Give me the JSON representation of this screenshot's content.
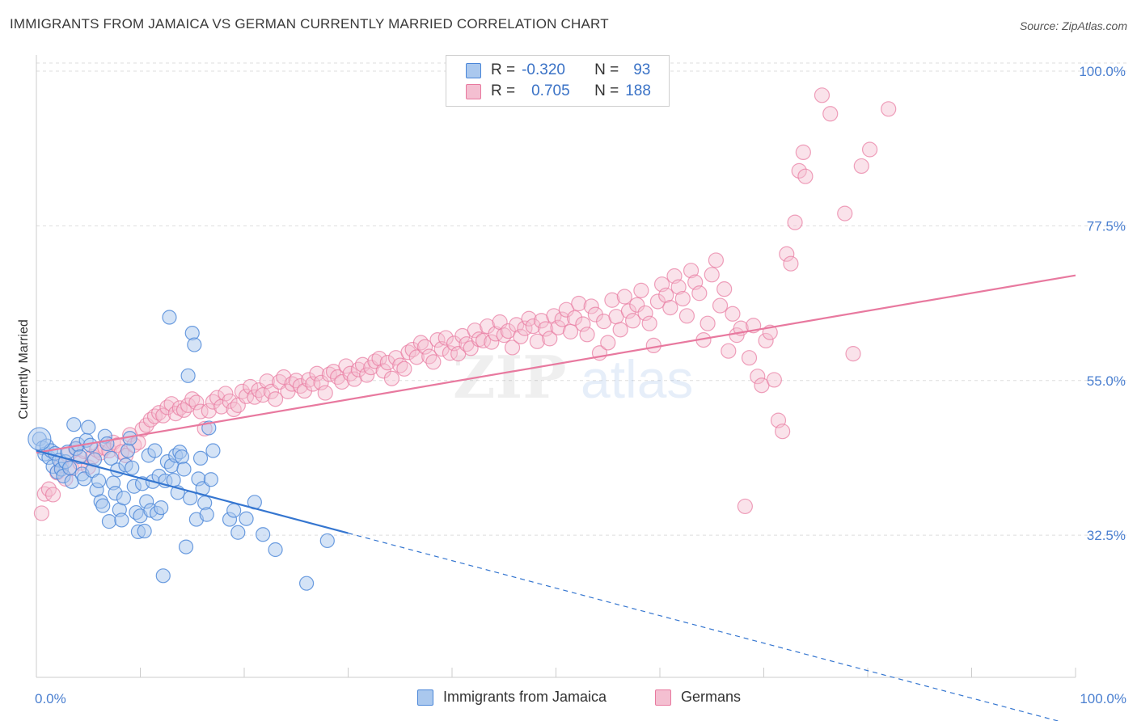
{
  "title": "IMMIGRANTS FROM JAMAICA VS GERMAN CURRENTLY MARRIED CORRELATION CHART",
  "source": "Source: ZipAtlas.com",
  "colors": {
    "blue": "#4a86d8",
    "blue_fill": "#aac8ee",
    "pink": "#e8799f",
    "pink_fill": "#f4bfd1",
    "tick_label": "#4a7fd0",
    "grid": "#dddddd"
  },
  "legend": {
    "rows": [
      {
        "r_label": "R =",
        "r_value": "-0.320",
        "n_label": "N =",
        "n_value": "93"
      },
      {
        "r_label": "R =",
        "r_value": "0.705",
        "n_label": "N =",
        "n_value": "188"
      }
    ]
  },
  "bottom_legend": {
    "series1": "Immigrants from Jamaica",
    "series2": "Germans"
  },
  "watermark": {
    "part1": "ZIP",
    "part2": "atlas"
  },
  "chart_data": {
    "type": "scatter",
    "title": "IMMIGRANTS FROM JAMAICA VS GERMAN CURRENTLY MARRIED CORRELATION CHART",
    "xlabel": "",
    "ylabel": "Currently Married",
    "xlim": [
      0,
      100
    ],
    "ylim": [
      10,
      102
    ],
    "x_tick_labels": [
      "0.0%",
      "100.0%"
    ],
    "y_ticks": [
      32.5,
      55.0,
      77.5,
      100.0
    ],
    "y_tick_labels": [
      "32.5%",
      "55.0%",
      "77.5%",
      "100.0%"
    ],
    "grid": true,
    "legend_position": "top-center",
    "series": [
      {
        "name": "Immigrants from Jamaica",
        "color": "#4a86d8",
        "r": -0.32,
        "n": 93,
        "trend": {
          "x0": 0,
          "y0": 44.8,
          "x1": 30,
          "y1": 32.8,
          "dashed_to_x": 100
        },
        "points": [
          [
            0.3,
            46.5
          ],
          [
            0.6,
            45.2
          ],
          [
            0.8,
            44.3
          ],
          [
            1.0,
            45.5
          ],
          [
            1.2,
            43.8
          ],
          [
            1.4,
            44.8
          ],
          [
            1.6,
            42.5
          ],
          [
            1.8,
            44.4
          ],
          [
            2.0,
            41.7
          ],
          [
            2.2,
            43.4
          ],
          [
            2.4,
            42.1
          ],
          [
            2.6,
            41.1
          ],
          [
            2.8,
            43.2
          ],
          [
            3.0,
            44.6
          ],
          [
            3.2,
            42.3
          ],
          [
            3.4,
            40.3
          ],
          [
            3.6,
            48.6
          ],
          [
            3.8,
            45.1
          ],
          [
            4.0,
            45.7
          ],
          [
            4.2,
            43.9
          ],
          [
            4.4,
            41.4
          ],
          [
            4.6,
            40.7
          ],
          [
            4.8,
            46.3
          ],
          [
            5.0,
            48.2
          ],
          [
            5.2,
            45.6
          ],
          [
            5.4,
            41.9
          ],
          [
            5.6,
            43.5
          ],
          [
            5.8,
            39.1
          ],
          [
            6.0,
            40.4
          ],
          [
            6.2,
            37.4
          ],
          [
            6.4,
            36.8
          ],
          [
            6.6,
            46.9
          ],
          [
            6.8,
            45.8
          ],
          [
            7.0,
            34.5
          ],
          [
            7.2,
            43.7
          ],
          [
            7.4,
            40.1
          ],
          [
            7.6,
            38.6
          ],
          [
            7.8,
            42.0
          ],
          [
            8.0,
            36.2
          ],
          [
            8.2,
            34.7
          ],
          [
            8.4,
            37.9
          ],
          [
            8.6,
            42.7
          ],
          [
            8.8,
            44.8
          ],
          [
            9.0,
            46.6
          ],
          [
            9.2,
            42.3
          ],
          [
            9.4,
            39.6
          ],
          [
            9.6,
            35.8
          ],
          [
            9.8,
            33.0
          ],
          [
            10.0,
            35.3
          ],
          [
            10.2,
            40.0
          ],
          [
            10.4,
            33.1
          ],
          [
            10.6,
            37.4
          ],
          [
            10.8,
            44.1
          ],
          [
            11.0,
            36.1
          ],
          [
            11.2,
            40.3
          ],
          [
            11.4,
            44.8
          ],
          [
            11.6,
            35.7
          ],
          [
            11.8,
            41.1
          ],
          [
            12.0,
            36.5
          ],
          [
            12.2,
            26.6
          ],
          [
            12.4,
            40.4
          ],
          [
            12.6,
            43.2
          ],
          [
            12.8,
            64.2
          ],
          [
            13.0,
            42.6
          ],
          [
            13.2,
            40.5
          ],
          [
            13.4,
            44.1
          ],
          [
            13.6,
            38.7
          ],
          [
            13.8,
            44.6
          ],
          [
            14.0,
            43.9
          ],
          [
            14.2,
            42.1
          ],
          [
            14.4,
            30.8
          ],
          [
            14.6,
            55.7
          ],
          [
            14.8,
            37.9
          ],
          [
            15.0,
            61.9
          ],
          [
            15.2,
            60.2
          ],
          [
            15.4,
            34.8
          ],
          [
            15.6,
            40.7
          ],
          [
            15.8,
            43.7
          ],
          [
            16.0,
            39.3
          ],
          [
            16.2,
            37.2
          ],
          [
            16.4,
            35.5
          ],
          [
            16.6,
            48.1
          ],
          [
            16.8,
            40.6
          ],
          [
            17.0,
            44.8
          ],
          [
            18.6,
            34.8
          ],
          [
            19.0,
            36.1
          ],
          [
            19.4,
            32.9
          ],
          [
            20.2,
            34.9
          ],
          [
            21.0,
            37.3
          ],
          [
            21.8,
            32.6
          ],
          [
            23.0,
            30.4
          ],
          [
            26.0,
            25.5
          ],
          [
            28.0,
            31.7
          ]
        ]
      },
      {
        "name": "Germans",
        "color": "#e8799f",
        "r": 0.705,
        "n": 188,
        "trend": {
          "x0": 0,
          "y0": 44.5,
          "x1": 100,
          "y1": 70.3
        },
        "points": [
          [
            0.5,
            35.7
          ],
          [
            0.8,
            38.5
          ],
          [
            1.2,
            39.2
          ],
          [
            1.6,
            38.4
          ],
          [
            2.0,
            41.6
          ],
          [
            2.4,
            42.7
          ],
          [
            2.8,
            40.7
          ],
          [
            3.0,
            44.2
          ],
          [
            3.4,
            42.2
          ],
          [
            3.8,
            45.1
          ],
          [
            4.2,
            43.0
          ],
          [
            4.6,
            44.7
          ],
          [
            5.0,
            42.4
          ],
          [
            5.4,
            43.9
          ],
          [
            5.8,
            44.9
          ],
          [
            6.2,
            44.5
          ],
          [
            6.6,
            45.2
          ],
          [
            7.0,
            44.8
          ],
          [
            7.4,
            46.0
          ],
          [
            7.8,
            45.6
          ],
          [
            8.2,
            44.6
          ],
          [
            8.6,
            44.1
          ],
          [
            9.0,
            47.1
          ],
          [
            9.4,
            45.6
          ],
          [
            9.8,
            46.0
          ],
          [
            10.2,
            47.9
          ],
          [
            10.6,
            48.5
          ],
          [
            11.0,
            49.3
          ],
          [
            11.4,
            49.8
          ],
          [
            11.8,
            50.3
          ],
          [
            12.2,
            49.9
          ],
          [
            12.6,
            51.1
          ],
          [
            13.0,
            51.6
          ],
          [
            13.4,
            50.2
          ],
          [
            13.8,
            51.0
          ],
          [
            14.2,
            50.7
          ],
          [
            14.6,
            51.4
          ],
          [
            15.0,
            52.3
          ],
          [
            15.4,
            51.8
          ],
          [
            15.8,
            50.5
          ],
          [
            16.2,
            48.0
          ],
          [
            16.6,
            50.6
          ],
          [
            17.0,
            51.9
          ],
          [
            17.4,
            52.5
          ],
          [
            17.8,
            51.2
          ],
          [
            18.2,
            53.1
          ],
          [
            18.6,
            52.0
          ],
          [
            19.0,
            50.8
          ],
          [
            19.4,
            51.4
          ],
          [
            19.8,
            53.4
          ],
          [
            20.2,
            52.7
          ],
          [
            20.6,
            54.1
          ],
          [
            21.0,
            52.6
          ],
          [
            21.4,
            53.6
          ],
          [
            21.8,
            52.9
          ],
          [
            22.2,
            54.9
          ],
          [
            22.6,
            53.4
          ],
          [
            23.0,
            52.3
          ],
          [
            23.4,
            54.8
          ],
          [
            23.8,
            55.5
          ],
          [
            24.2,
            53.4
          ],
          [
            24.6,
            54.5
          ],
          [
            25.0,
            55.0
          ],
          [
            25.4,
            54.2
          ],
          [
            25.8,
            53.5
          ],
          [
            26.2,
            55.1
          ],
          [
            26.6,
            54.5
          ],
          [
            27.0,
            56.0
          ],
          [
            27.4,
            54.7
          ],
          [
            27.8,
            53.2
          ],
          [
            28.2,
            55.9
          ],
          [
            28.6,
            56.3
          ],
          [
            29.0,
            55.5
          ],
          [
            29.4,
            54.8
          ],
          [
            29.8,
            57.1
          ],
          [
            30.2,
            56.0
          ],
          [
            30.6,
            55.2
          ],
          [
            31.0,
            56.6
          ],
          [
            31.4,
            57.3
          ],
          [
            31.8,
            55.8
          ],
          [
            32.2,
            56.9
          ],
          [
            32.6,
            57.8
          ],
          [
            33.0,
            58.2
          ],
          [
            33.4,
            56.4
          ],
          [
            33.8,
            57.6
          ],
          [
            34.2,
            55.3
          ],
          [
            34.6,
            58.3
          ],
          [
            35.0,
            57.2
          ],
          [
            35.4,
            56.7
          ],
          [
            35.8,
            59.1
          ],
          [
            36.2,
            59.5
          ],
          [
            36.6,
            58.4
          ],
          [
            37.0,
            60.5
          ],
          [
            37.4,
            59.9
          ],
          [
            37.8,
            58.5
          ],
          [
            38.2,
            57.7
          ],
          [
            38.6,
            60.9
          ],
          [
            39.0,
            59.6
          ],
          [
            39.4,
            61.2
          ],
          [
            39.8,
            59.0
          ],
          [
            40.2,
            60.4
          ],
          [
            40.6,
            58.9
          ],
          [
            41.0,
            61.5
          ],
          [
            41.4,
            60.3
          ],
          [
            41.8,
            59.7
          ],
          [
            42.2,
            62.3
          ],
          [
            42.6,
            61.0
          ],
          [
            43.0,
            60.8
          ],
          [
            43.4,
            62.9
          ],
          [
            43.8,
            60.6
          ],
          [
            44.2,
            61.8
          ],
          [
            44.6,
            63.5
          ],
          [
            45.0,
            61.6
          ],
          [
            45.4,
            62.2
          ],
          [
            45.8,
            59.8
          ],
          [
            46.2,
            63.1
          ],
          [
            46.6,
            61.4
          ],
          [
            47.0,
            62.6
          ],
          [
            47.4,
            64.0
          ],
          [
            47.8,
            62.9
          ],
          [
            48.2,
            60.7
          ],
          [
            48.6,
            63.7
          ],
          [
            49.0,
            62.5
          ],
          [
            49.4,
            61.1
          ],
          [
            49.8,
            64.4
          ],
          [
            50.2,
            62.7
          ],
          [
            50.6,
            63.9
          ],
          [
            51.0,
            65.3
          ],
          [
            51.4,
            62.1
          ],
          [
            51.8,
            64.1
          ],
          [
            52.2,
            66.2
          ],
          [
            52.6,
            63.2
          ],
          [
            53.0,
            61.7
          ],
          [
            53.4,
            65.8
          ],
          [
            53.8,
            64.6
          ],
          [
            54.2,
            59.0
          ],
          [
            54.6,
            63.6
          ],
          [
            55.0,
            60.5
          ],
          [
            55.4,
            66.7
          ],
          [
            55.8,
            64.3
          ],
          [
            56.2,
            62.4
          ],
          [
            56.6,
            67.2
          ],
          [
            57.0,
            65.1
          ],
          [
            57.4,
            63.7
          ],
          [
            57.8,
            66.0
          ],
          [
            58.2,
            68.1
          ],
          [
            58.6,
            64.8
          ],
          [
            59.0,
            63.3
          ],
          [
            59.4,
            60.1
          ],
          [
            59.8,
            66.5
          ],
          [
            60.2,
            69.0
          ],
          [
            60.6,
            67.4
          ],
          [
            61.0,
            65.6
          ],
          [
            61.4,
            70.2
          ],
          [
            61.8,
            68.6
          ],
          [
            62.2,
            66.9
          ],
          [
            62.6,
            64.4
          ],
          [
            63.0,
            71.0
          ],
          [
            63.4,
            69.3
          ],
          [
            63.8,
            67.7
          ],
          [
            64.2,
            60.9
          ],
          [
            64.6,
            63.3
          ],
          [
            65.0,
            70.4
          ],
          [
            65.4,
            72.5
          ],
          [
            65.8,
            65.9
          ],
          [
            66.2,
            68.3
          ],
          [
            66.6,
            59.3
          ],
          [
            67.0,
            64.7
          ],
          [
            67.4,
            61.6
          ],
          [
            67.8,
            62.6
          ],
          [
            68.2,
            36.7
          ],
          [
            68.6,
            58.3
          ],
          [
            69.0,
            63.0
          ],
          [
            69.4,
            55.6
          ],
          [
            69.8,
            54.3
          ],
          [
            70.2,
            60.8
          ],
          [
            70.6,
            62.0
          ],
          [
            71.0,
            55.1
          ],
          [
            71.4,
            49.2
          ],
          [
            71.8,
            47.6
          ],
          [
            72.2,
            73.4
          ],
          [
            72.6,
            72.0
          ],
          [
            73.0,
            78.0
          ],
          [
            73.4,
            85.5
          ],
          [
            73.8,
            88.2
          ],
          [
            74.0,
            84.7
          ],
          [
            75.6,
            96.5
          ],
          [
            76.4,
            93.8
          ],
          [
            77.8,
            79.3
          ],
          [
            78.6,
            58.9
          ],
          [
            79.4,
            86.2
          ],
          [
            80.2,
            88.6
          ],
          [
            82.0,
            94.5
          ]
        ]
      }
    ]
  }
}
